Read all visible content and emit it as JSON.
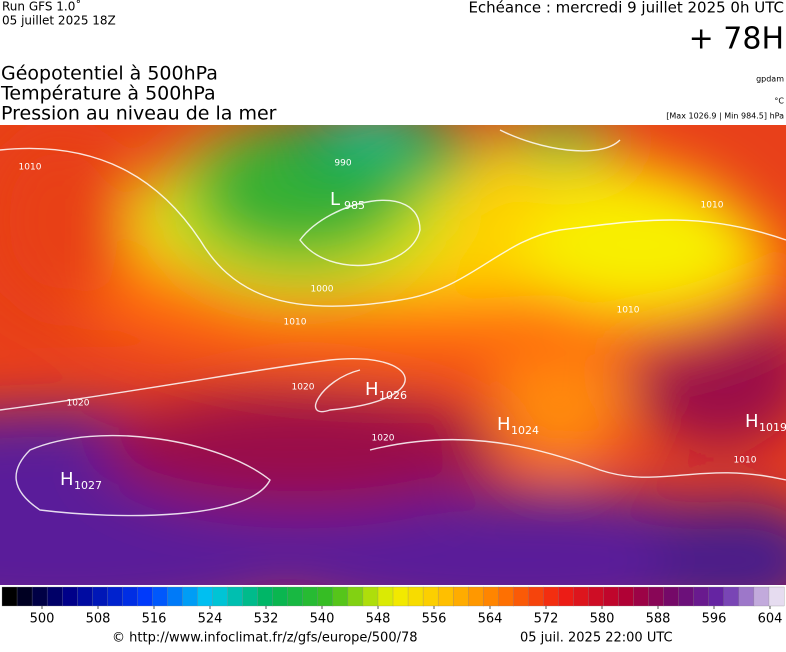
{
  "header": {
    "run": "Run GFS 1.0˚",
    "date": "05 juillet 2025 18Z",
    "echeance": "Echéance : mercredi 9 juillet 2025 0h UTC",
    "lead": "+ 78H",
    "layers": [
      "Géopotentiel à 500hPa",
      "Température à 500hPa",
      "Pression au niveau de la mer"
    ],
    "units": [
      "gpdam",
      "°C",
      "[Max 1026.9 | Min 984.5] hPa"
    ]
  },
  "map": {
    "pressure_centers": [
      {
        "letter": "L",
        "value": "985"
      },
      {
        "letter": "H",
        "value": "1026"
      },
      {
        "letter": "H",
        "value": "1027"
      },
      {
        "letter": "H",
        "value": "1024"
      },
      {
        "letter": "H",
        "value": "1019"
      }
    ],
    "contour_labels": [
      "1010",
      "990",
      "1000",
      "1010",
      "1020",
      "1020",
      "1020",
      "1010",
      "1010",
      "1010"
    ]
  },
  "colorbar": {
    "ticks": [
      500,
      508,
      516,
      524,
      532,
      540,
      548,
      556,
      564,
      572,
      580,
      588,
      596,
      604
    ]
  },
  "footer": {
    "url": "© http://www.infoclimat.fr/z/gfs/europe/500/78",
    "time": "05 juil. 2025 22:00 UTC"
  }
}
